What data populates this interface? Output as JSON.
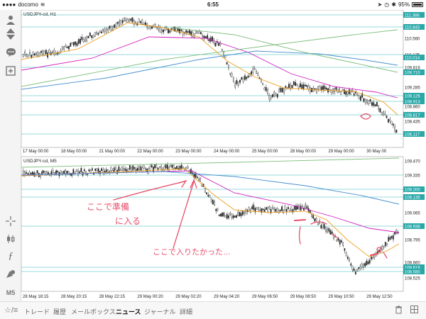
{
  "status_bar": {
    "carrier": "docomo",
    "time": "6:55",
    "battery": "95%"
  },
  "top_chart": {
    "symbol_label": "USDJPY-cd, H1",
    "price_labels": [
      "111.386",
      "110.843",
      "110.560",
      "110.135",
      "110.014",
      "109.816",
      "109.710",
      "109.285",
      "109.126",
      "108.913",
      "108.860",
      "108.817",
      "108.435",
      "108.117"
    ],
    "time_labels": [
      "17 May 00:00",
      "18 May 00:00",
      "21 May 00:00",
      "22 May 00:00",
      "23 May 00:00",
      "24 May 00:00",
      "25 May 00:00",
      "28 May 00:00",
      "29 May 00:00",
      "30 May 00"
    ]
  },
  "bottom_chart": {
    "symbol_label": "USDJPY-cd, M5",
    "price_labels": [
      "109.470",
      "109.335",
      "109.200",
      "109.135",
      "109.065",
      "108.938",
      "108.795",
      "108.660",
      "108.616",
      "108.580",
      "108.525"
    ],
    "time_labels": [
      "28 May 18:15",
      "28 May 20:15",
      "28 May 22:15",
      "29 May 00:20",
      "29 May 02:20",
      "29 May 04:20",
      "29 May 06:50",
      "29 May 08:50",
      "29 May 10:50",
      "29 May 12:50"
    ],
    "annotations": {
      "note1": "ここで準備",
      "note2": "に入る",
      "note3": "ここで入りたかった…"
    }
  },
  "sidebar": {
    "icons": [
      "person-icon",
      "buy-sell-icon",
      "chat-icon",
      "add-chart-icon",
      "crosshair-icon",
      "candlestick-icon",
      "function-icon",
      "objects-icon"
    ],
    "timeframe": "M5"
  },
  "bottom_bar": {
    "left_icon": "☆/≡",
    "tabs": [
      "トレード",
      "履歴",
      "メールボックス",
      "ニュース",
      "ジャーナル",
      "詳細"
    ],
    "active_tab": "ニュース"
  },
  "colors": {
    "ma_orange": "#f0a020",
    "ma_magenta": "#d020c0",
    "ma_blue": "#4a90d0",
    "ma_green": "#80c080",
    "hline_cyan": "#30b8b8",
    "annotation_pink": "#e8506a",
    "label_teal": "#2aa8a8"
  }
}
